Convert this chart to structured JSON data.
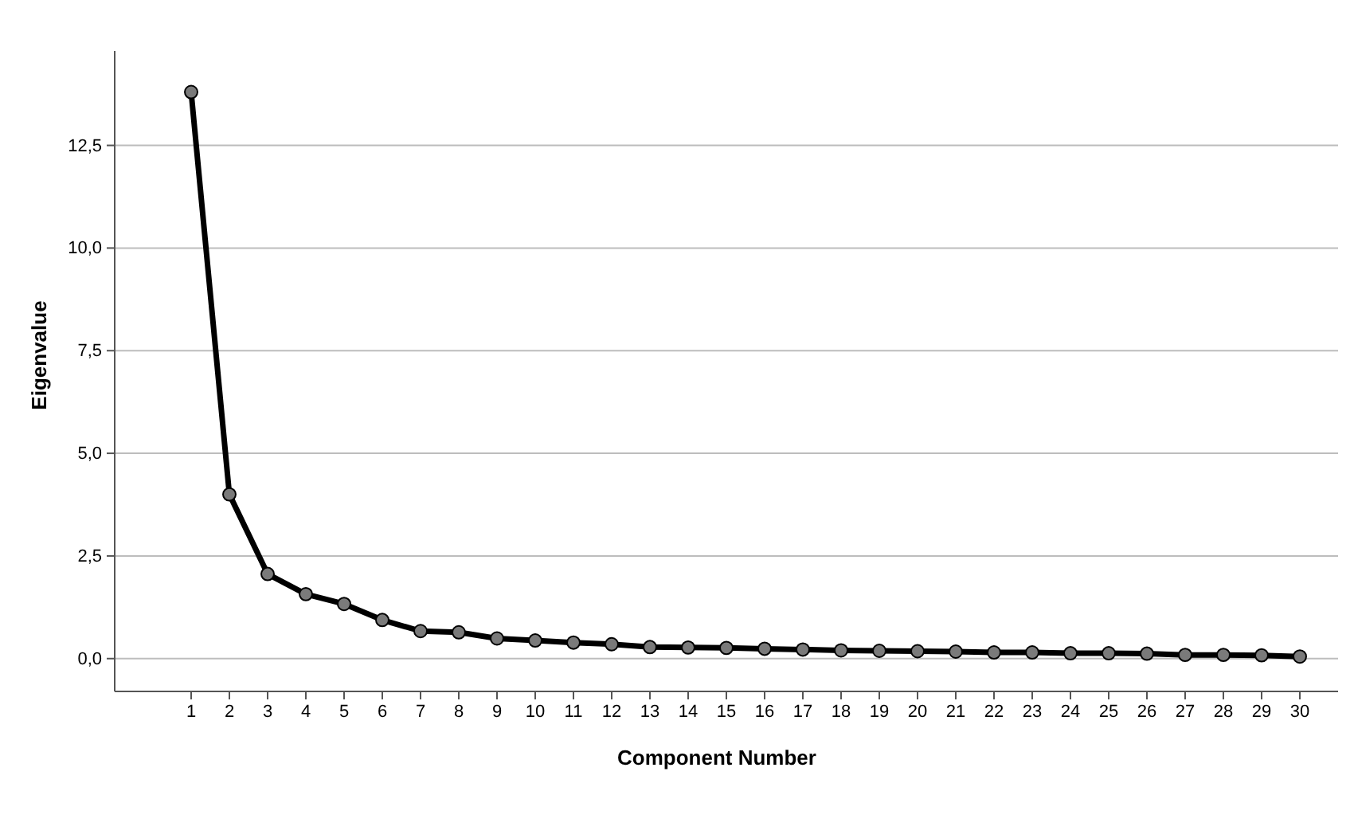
{
  "chart_data": {
    "type": "line",
    "xlabel": "Component Number",
    "ylabel": "Eigenvalue",
    "x": [
      1,
      2,
      3,
      4,
      5,
      6,
      7,
      8,
      9,
      10,
      11,
      12,
      13,
      14,
      15,
      16,
      17,
      18,
      19,
      20,
      21,
      22,
      23,
      24,
      25,
      26,
      27,
      28,
      29,
      30
    ],
    "xlim": [
      -1,
      31
    ],
    "xticks": [
      1,
      2,
      3,
      4,
      5,
      6,
      7,
      8,
      9,
      10,
      11,
      12,
      13,
      14,
      15,
      16,
      17,
      18,
      19,
      20,
      21,
      22,
      23,
      24,
      25,
      26,
      27,
      28,
      29,
      30
    ],
    "ylim": [
      -0.8,
      14.8
    ],
    "yticks": [
      {
        "value": 0,
        "label": "0,0"
      },
      {
        "value": 2.5,
        "label": "2,5"
      },
      {
        "value": 5,
        "label": "5,0"
      },
      {
        "value": 7.5,
        "label": "7,5"
      },
      {
        "value": 10,
        "label": "10,0"
      },
      {
        "value": 12.5,
        "label": "12,5"
      }
    ],
    "grid": "y",
    "marker": "circle",
    "line_style": "solid",
    "series": [
      {
        "color": "#000000",
        "values": [
          13.8,
          4.0,
          2.06,
          1.57,
          1.33,
          0.94,
          0.67,
          0.64,
          0.49,
          0.44,
          0.39,
          0.35,
          0.28,
          0.27,
          0.26,
          0.24,
          0.22,
          0.2,
          0.19,
          0.18,
          0.17,
          0.15,
          0.15,
          0.13,
          0.13,
          0.12,
          0.09,
          0.09,
          0.08,
          0.05
        ]
      }
    ]
  }
}
